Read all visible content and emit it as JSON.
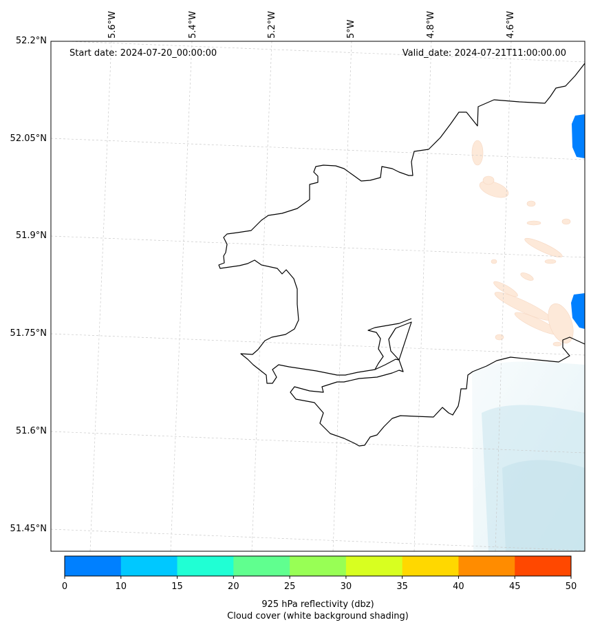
{
  "map": {
    "start_label": "Start date: 2024-07-20_00:00:00",
    "valid_label": "Valid_date: 2024-07-21T11:00:00.00",
    "lat_labels": [
      "52.2°N",
      "52.05°N",
      "51.9°N",
      "51.75°N",
      "51.6°N",
      "51.45°N"
    ],
    "lon_labels": [
      "5.6°W",
      "5.4°W",
      "5.2°W",
      "5°W",
      "4.8°W",
      "4.6°W"
    ],
    "land_color": "#ffffff",
    "coastline_color": "#000000",
    "cloud_color": "#c9e6ee",
    "light_echo_color": "#fde9d9",
    "strong_echo_color": "#0080ff"
  },
  "colorbar": {
    "ticks": [
      "0",
      "10",
      "15",
      "20",
      "25",
      "30",
      "35",
      "40",
      "45",
      "50"
    ],
    "colors": [
      "#0080ff",
      "#00c8ff",
      "#20ffd4",
      "#60ff8f",
      "#98ff55",
      "#d8ff20",
      "#ffd800",
      "#ff8c00",
      "#ff4800"
    ],
    "label_line1": "925 hPa reflectivity (dbz)",
    "label_line2": "Cloud cover (white background shading)"
  }
}
